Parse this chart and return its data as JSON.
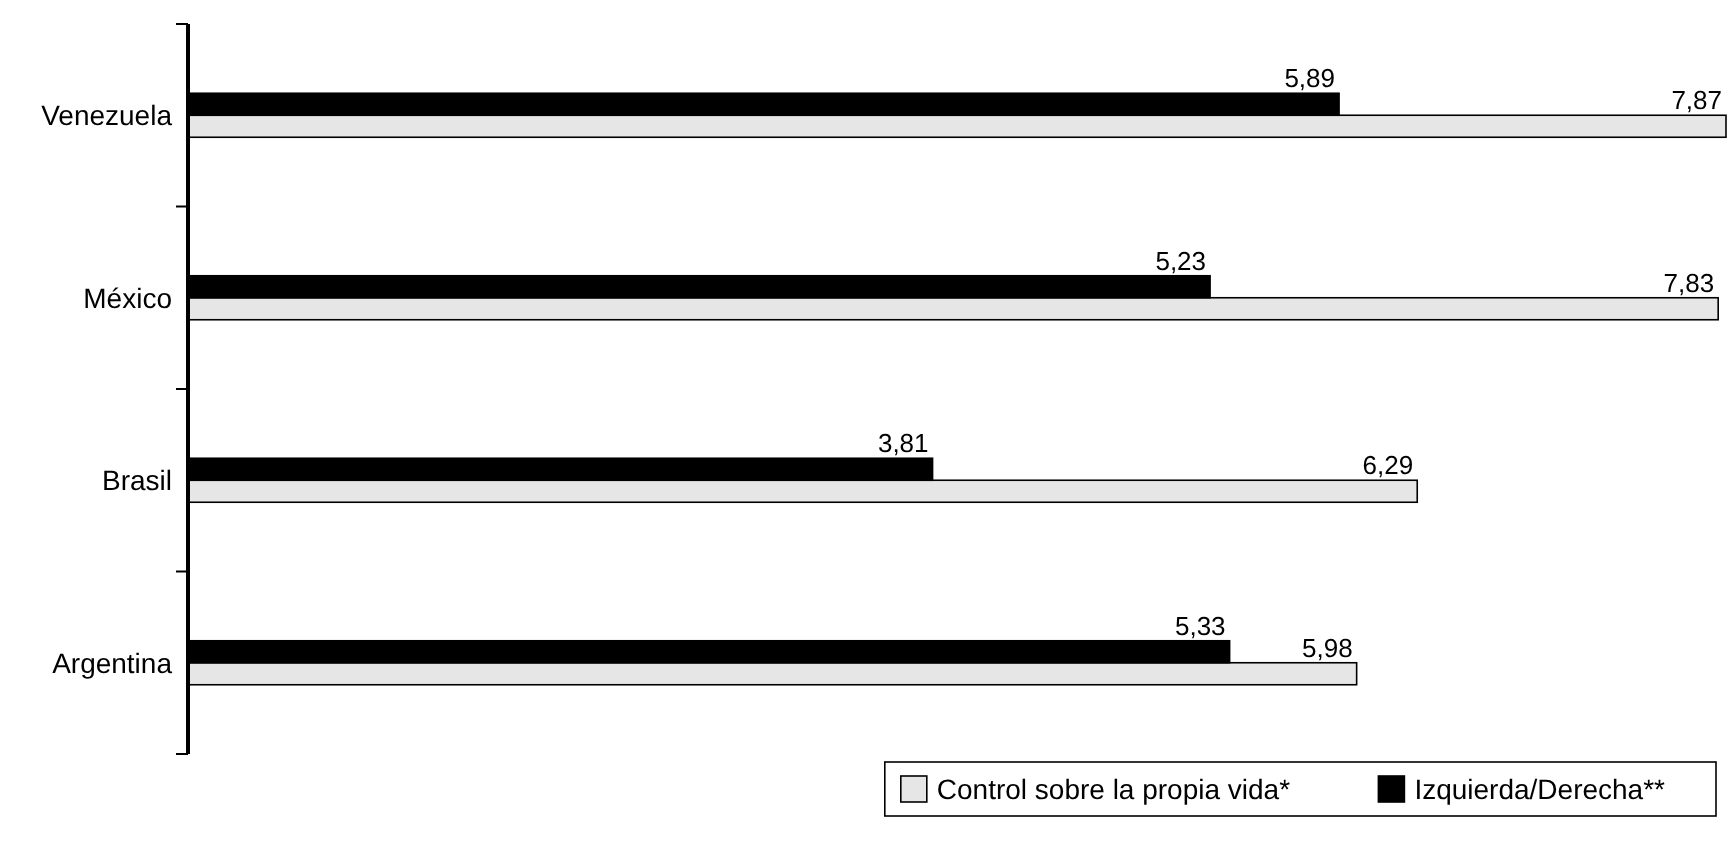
{
  "chart_data": {
    "type": "bar",
    "orientation": "horizontal",
    "categories": [
      "Venezuela",
      "México",
      "Brasil",
      "Argentina"
    ],
    "series": [
      {
        "name": "Control sobre la propia vida*",
        "color": "#e6e6e6",
        "values": [
          7.87,
          7.83,
          6.29,
          5.98
        ],
        "value_labels": [
          "7,87",
          "7,83",
          "6,29",
          "5,98"
        ]
      },
      {
        "name": "Izquierda/Derecha**",
        "color": "#000000",
        "values": [
          5.89,
          5.23,
          3.81,
          5.33
        ],
        "value_labels": [
          "5,89",
          "5,23",
          "3,81",
          "5,33"
        ]
      }
    ],
    "legend": "bottom right"
  }
}
